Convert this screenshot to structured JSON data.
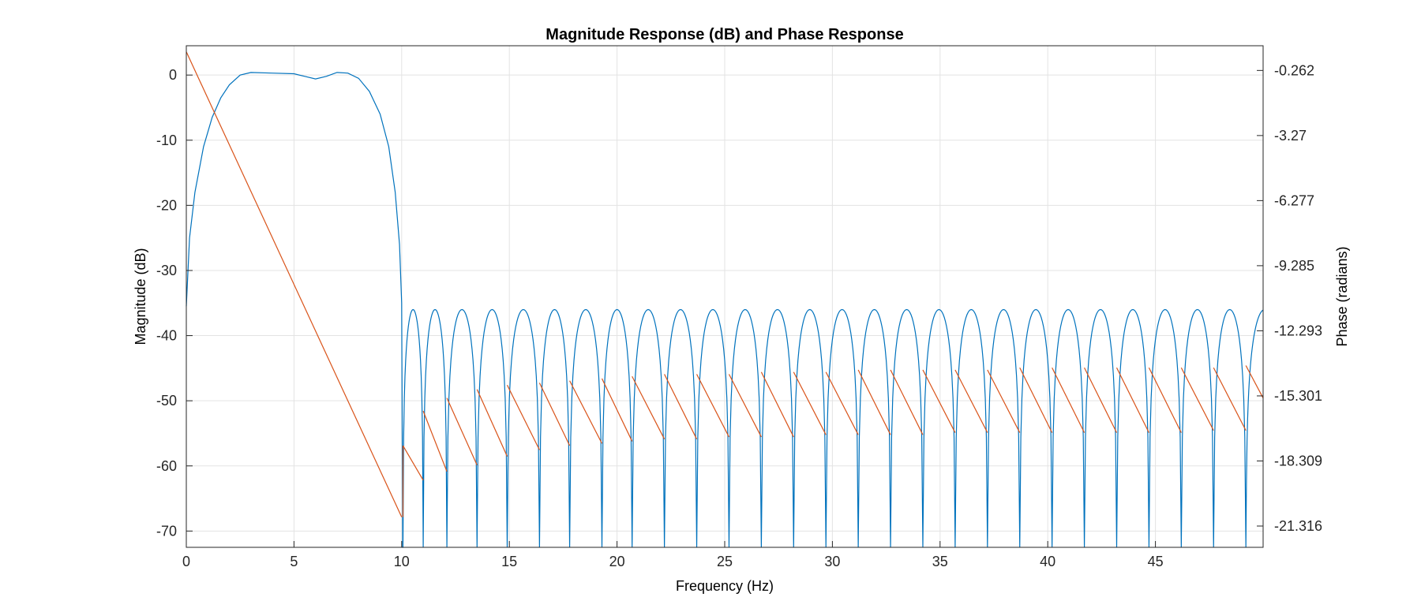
{
  "chart_data": {
    "type": "line",
    "title": "Magnitude Response (dB) and Phase Response",
    "xlabel": "Frequency (Hz)",
    "ylabel_left": "Magnitude (dB)",
    "ylabel_right": "Phase (radians)",
    "xlim": [
      0,
      50
    ],
    "ylim_left": [
      -72.5,
      4.5
    ],
    "ylim_right": [
      -22.3,
      0.88
    ],
    "x_ticks": [
      "0",
      "5",
      "10",
      "15",
      "20",
      "25",
      "30",
      "35",
      "40",
      "45"
    ],
    "y_ticks_left": [
      "0",
      "-10",
      "-20",
      "-30",
      "-40",
      "-50",
      "-60",
      "-70"
    ],
    "y_ticks_right": [
      "-0.262",
      "-3.27",
      "-6.277",
      "-9.285",
      "-12.293",
      "-15.301",
      "-18.309",
      "-21.316"
    ],
    "grid": true,
    "series": [
      {
        "axis": "left",
        "color": "#0072BD",
        "passband_edge_hz": 10,
        "stopband_peak_db": -36,
        "points": [
          [
            0,
            -35.5
          ],
          [
            0.15,
            -25
          ],
          [
            0.4,
            -18
          ],
          [
            0.8,
            -11
          ],
          [
            1.2,
            -6.5
          ],
          [
            1.6,
            -3.5
          ],
          [
            2.0,
            -1.5
          ],
          [
            2.5,
            0
          ],
          [
            3.0,
            0.4
          ],
          [
            4.0,
            0.3
          ],
          [
            5.0,
            0.2
          ],
          [
            5.5,
            -0.2
          ],
          [
            6.0,
            -0.6
          ],
          [
            6.5,
            -0.2
          ],
          [
            7.0,
            0.4
          ],
          [
            7.5,
            0.3
          ],
          [
            8.0,
            -0.5
          ],
          [
            8.5,
            -2.5
          ],
          [
            9.0,
            -6
          ],
          [
            9.4,
            -11
          ],
          [
            9.7,
            -18
          ],
          [
            9.9,
            -26
          ],
          [
            10.0,
            -35
          ],
          [
            10.05,
            -72.5
          ]
        ],
        "stopband_nulls_hz": [
          10.06,
          11.0,
          12.1,
          13.5,
          14.9,
          16.4,
          17.8,
          19.3,
          20.7,
          22.2,
          23.7,
          25.2,
          26.7,
          28.2,
          29.7,
          31.2,
          32.7,
          34.2,
          35.7,
          37.2,
          38.7,
          40.2,
          41.7,
          43.2,
          44.7,
          46.2,
          47.7,
          49.2
        ]
      },
      {
        "axis": "right",
        "color": "#D95319",
        "passband_line": [
          [
            0,
            0.6
          ],
          [
            10,
            -20.9
          ]
        ],
        "sawtooth": [
          [
            [
              10.06,
              -17.6
            ],
            [
              11.0,
              -19.2
            ]
          ],
          [
            [
              11.0,
              -16.0
            ],
            [
              12.1,
              -18.8
            ]
          ],
          [
            [
              12.1,
              -15.4
            ],
            [
              13.5,
              -18.5
            ]
          ],
          [
            [
              13.5,
              -15.0
            ],
            [
              14.9,
              -18.1
            ]
          ],
          [
            [
              14.9,
              -14.8
            ],
            [
              16.4,
              -17.8
            ]
          ],
          [
            [
              16.4,
              -14.7
            ],
            [
              17.8,
              -17.6
            ]
          ],
          [
            [
              17.8,
              -14.6
            ],
            [
              19.3,
              -17.5
            ]
          ],
          [
            [
              19.3,
              -14.5
            ],
            [
              20.7,
              -17.4
            ]
          ],
          [
            [
              20.7,
              -14.4
            ],
            [
              22.2,
              -17.3
            ]
          ],
          [
            [
              22.2,
              -14.3
            ],
            [
              23.7,
              -17.3
            ]
          ],
          [
            [
              23.7,
              -14.3
            ],
            [
              25.2,
              -17.2
            ]
          ],
          [
            [
              25.2,
              -14.3
            ],
            [
              26.7,
              -17.2
            ]
          ],
          [
            [
              26.7,
              -14.2
            ],
            [
              28.2,
              -17.2
            ]
          ],
          [
            [
              28.2,
              -14.2
            ],
            [
              29.7,
              -17.1
            ]
          ],
          [
            [
              29.7,
              -14.2
            ],
            [
              31.2,
              -17.1
            ]
          ],
          [
            [
              31.2,
              -14.1
            ],
            [
              32.7,
              -17.1
            ]
          ],
          [
            [
              32.7,
              -14.1
            ],
            [
              34.2,
              -17.1
            ]
          ],
          [
            [
              34.2,
              -14.1
            ],
            [
              35.7,
              -17.0
            ]
          ],
          [
            [
              35.7,
              -14.1
            ],
            [
              37.2,
              -17.0
            ]
          ],
          [
            [
              37.2,
              -14.1
            ],
            [
              38.7,
              -17.0
            ]
          ],
          [
            [
              38.7,
              -14.0
            ],
            [
              40.2,
              -17.0
            ]
          ],
          [
            [
              40.2,
              -14.0
            ],
            [
              41.7,
              -17.0
            ]
          ],
          [
            [
              41.7,
              -14.0
            ],
            [
              43.2,
              -17.0
            ]
          ],
          [
            [
              43.2,
              -14.0
            ],
            [
              44.7,
              -17.0
            ]
          ],
          [
            [
              44.7,
              -14.0
            ],
            [
              46.2,
              -17.0
            ]
          ],
          [
            [
              46.2,
              -14.0
            ],
            [
              47.7,
              -16.9
            ]
          ],
          [
            [
              47.7,
              -14.0
            ],
            [
              49.2,
              -16.9
            ]
          ],
          [
            [
              49.2,
              -13.9
            ],
            [
              50.0,
              -15.4
            ]
          ]
        ]
      }
    ]
  }
}
